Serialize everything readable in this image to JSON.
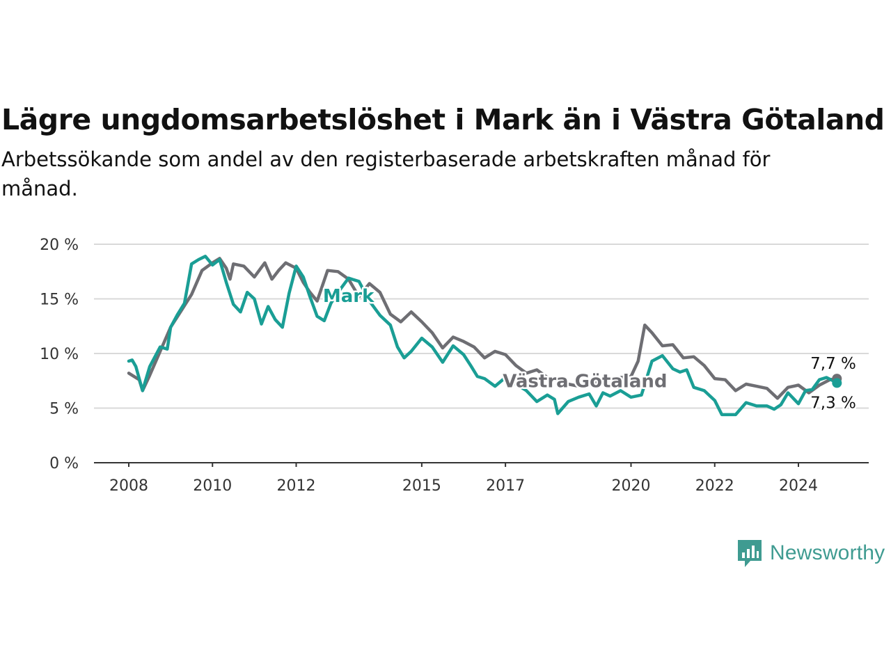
{
  "title": "Lägre ungdomsarbetslöshet i Mark än i Västra Götaland",
  "subtitle": "Arbetssökande som andel av den registerbaserade arbetskraften månad för månad.",
  "brand": {
    "name": "Newsworthy",
    "icon": "newsworthy-logo-icon",
    "color": "#3f9b91"
  },
  "chart_data": {
    "type": "line",
    "title": "Lägre ungdomsarbetslöshet i Mark än i Västra Götaland",
    "subtitle": "Arbetssökande som andel av den registerbaserade arbetskraften månad för månad.",
    "xlabel": "",
    "ylabel": "",
    "xlim": [
      2007.67,
      2025.25
    ],
    "ylim": [
      0,
      20
    ],
    "grid": true,
    "legend": "inline labels",
    "y_ticks": [
      0,
      5,
      10,
      15,
      20
    ],
    "y_tick_labels": [
      "0 %",
      "5 %",
      "10 %",
      "15 %",
      "20 %"
    ],
    "x_ticks": [
      2008,
      2010,
      2012,
      2015,
      2017,
      2020,
      2022,
      2024
    ],
    "x_tick_labels": [
      "2008",
      "2010",
      "2012",
      "2015",
      "2017",
      "2020",
      "2022",
      "2024"
    ],
    "series": [
      {
        "name": "Västra Götaland",
        "color": "#6e6e73",
        "end_label": "7,7 %",
        "x": [
          2008.0,
          2008.25,
          2008.33,
          2008.5,
          2008.75,
          2009.0,
          2009.25,
          2009.5,
          2009.75,
          2010.0,
          2010.17,
          2010.33,
          2010.42,
          2010.5,
          2010.75,
          2011.0,
          2011.25,
          2011.42,
          2011.58,
          2011.75,
          2012.0,
          2012.17,
          2012.33,
          2012.5,
          2012.75,
          2013.0,
          2013.25,
          2013.5,
          2013.75,
          2014.0,
          2014.25,
          2014.5,
          2014.75,
          2015.0,
          2015.25,
          2015.5,
          2015.75,
          2016.0,
          2016.25,
          2016.5,
          2016.75,
          2017.0,
          2017.25,
          2017.5,
          2017.75,
          2018.0,
          2018.25,
          2018.5,
          2018.75,
          2019.0,
          2019.25,
          2019.5,
          2019.75,
          2020.0,
          2020.17,
          2020.33,
          2020.5,
          2020.75,
          2021.0,
          2021.25,
          2021.5,
          2021.75,
          2022.0,
          2022.25,
          2022.5,
          2022.75,
          2023.0,
          2023.25,
          2023.5,
          2023.75,
          2024.0,
          2024.25,
          2024.5,
          2024.75,
          2024.92
        ],
        "values": [
          8.2,
          7.6,
          6.6,
          8.0,
          10.2,
          12.4,
          13.9,
          15.4,
          17.6,
          18.3,
          18.7,
          17.8,
          16.8,
          18.2,
          18.0,
          17.0,
          18.3,
          16.8,
          17.6,
          18.3,
          17.8,
          16.5,
          15.6,
          14.8,
          17.6,
          17.5,
          16.8,
          15.2,
          16.4,
          15.6,
          13.6,
          12.9,
          13.8,
          12.9,
          11.9,
          10.5,
          11.5,
          11.1,
          10.6,
          9.6,
          10.2,
          9.9,
          8.9,
          8.2,
          8.5,
          7.8,
          7.5,
          7.2,
          7.0,
          7.2,
          7.4,
          7.6,
          7.8,
          7.9,
          9.3,
          12.6,
          11.9,
          10.7,
          10.8,
          9.6,
          9.7,
          8.9,
          7.7,
          7.6,
          6.6,
          7.2,
          7.0,
          6.8,
          5.9,
          6.9,
          7.1,
          6.4,
          7.1,
          7.6,
          7.7
        ]
      },
      {
        "name": "Mark",
        "color": "#1a9e95",
        "end_label": "7,3 %",
        "x": [
          2008.0,
          2008.08,
          2008.17,
          2008.33,
          2008.5,
          2008.75,
          2008.92,
          2009.0,
          2009.17,
          2009.33,
          2009.5,
          2009.67,
          2009.83,
          2010.0,
          2010.17,
          2010.33,
          2010.5,
          2010.67,
          2010.83,
          2011.0,
          2011.17,
          2011.33,
          2011.5,
          2011.67,
          2011.83,
          2012.0,
          2012.17,
          2012.33,
          2012.5,
          2012.67,
          2012.83,
          2013.0,
          2013.25,
          2013.5,
          2013.75,
          2014.0,
          2014.25,
          2014.42,
          2014.58,
          2014.75,
          2015.0,
          2015.25,
          2015.5,
          2015.75,
          2016.0,
          2016.17,
          2016.33,
          2016.5,
          2016.75,
          2017.0,
          2017.25,
          2017.5,
          2017.75,
          2018.0,
          2018.17,
          2018.25,
          2018.5,
          2018.75,
          2019.0,
          2019.17,
          2019.33,
          2019.5,
          2019.75,
          2020.0,
          2020.25,
          2020.5,
          2020.75,
          2021.0,
          2021.17,
          2021.33,
          2021.5,
          2021.75,
          2022.0,
          2022.17,
          2022.5,
          2022.75,
          2023.0,
          2023.25,
          2023.42,
          2023.58,
          2023.75,
          2024.0,
          2024.17,
          2024.33,
          2024.5,
          2024.67,
          2024.83,
          2024.92
        ],
        "values": [
          9.3,
          9.4,
          8.8,
          6.6,
          8.8,
          10.6,
          10.4,
          12.4,
          13.6,
          14.6,
          18.2,
          18.6,
          18.9,
          18.1,
          18.6,
          16.5,
          14.5,
          13.8,
          15.6,
          15.0,
          12.7,
          14.3,
          13.1,
          12.4,
          15.5,
          18.0,
          17.0,
          15.2,
          13.4,
          13.0,
          14.6,
          15.6,
          16.9,
          16.6,
          14.8,
          13.5,
          12.6,
          10.6,
          9.6,
          10.2,
          11.4,
          10.6,
          9.2,
          10.7,
          9.9,
          8.9,
          7.9,
          7.7,
          7.0,
          7.8,
          7.2,
          6.6,
          5.6,
          6.2,
          5.8,
          4.5,
          5.6,
          6.0,
          6.3,
          5.2,
          6.4,
          6.1,
          6.6,
          6.0,
          6.2,
          9.3,
          9.8,
          8.6,
          8.3,
          8.5,
          6.9,
          6.6,
          5.7,
          4.4,
          4.4,
          5.5,
          5.2,
          5.2,
          4.9,
          5.3,
          6.4,
          5.4,
          6.6,
          6.7,
          7.6,
          7.8,
          7.5,
          7.3
        ]
      }
    ],
    "annotations": [
      {
        "text": "Mark",
        "series": "Mark",
        "at_x": 2013.25,
        "at_y": 14.7
      },
      {
        "text": "Västra Götaland",
        "series": "Västra Götaland",
        "at_x": 2018.9,
        "at_y": 6.9
      }
    ]
  }
}
